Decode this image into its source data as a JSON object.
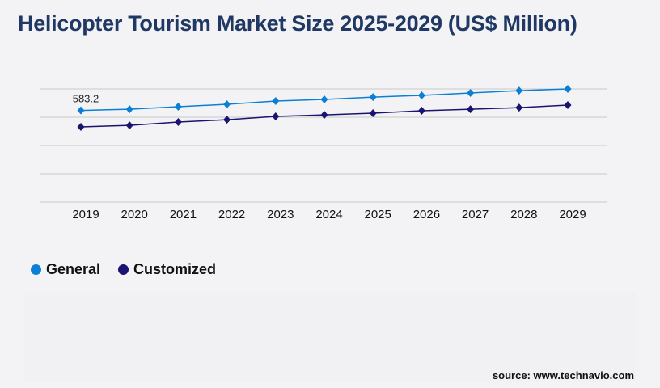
{
  "chart_data": {
    "type": "line",
    "title": "Helicopter Tourism Market Size 2025-2029 (US$ Million)",
    "categories": [
      "2019",
      "2020",
      "2021",
      "2022",
      "2023",
      "2024",
      "2025",
      "2026",
      "2027",
      "2028",
      "2029"
    ],
    "series": [
      {
        "name": "General",
        "color": "#0a7fd4",
        "values": [
          583.2,
          591,
          607,
          622,
          643,
          653,
          668,
          679,
          694,
          709,
          720
        ]
      },
      {
        "name": "Customized",
        "color": "#1a1470",
        "values": [
          478,
          488,
          509,
          524,
          545,
          555,
          566,
          581,
          591,
          601,
          617
        ]
      }
    ],
    "data_labels": [
      {
        "series": "General",
        "category": "2019",
        "text": "583.2"
      }
    ],
    "ylim": [
      0,
      720
    ],
    "grid": true,
    "y_ticks_shown": false,
    "legend_placement": "bottom-left",
    "marker": "diamond"
  },
  "source": "source: www.technavio.com"
}
